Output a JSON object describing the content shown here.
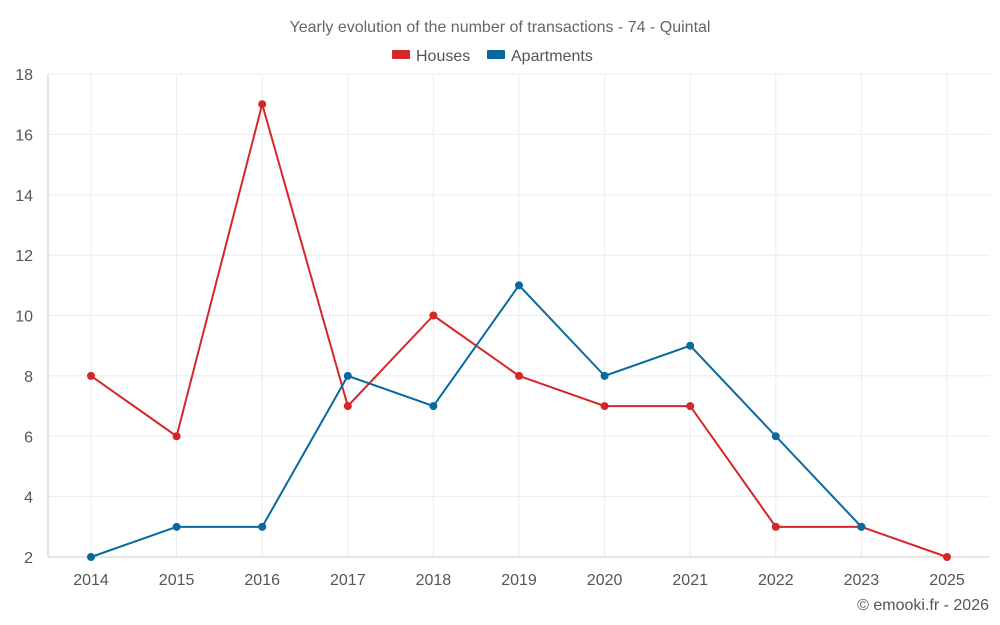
{
  "chart_data": {
    "type": "line",
    "title": "Yearly evolution of the number of transactions - 74 - Quintal",
    "categories": [
      "2014",
      "2015",
      "2016",
      "2017",
      "2018",
      "2019",
      "2020",
      "2021",
      "2022",
      "2023",
      "2025"
    ],
    "series": [
      {
        "name": "Houses",
        "color": "#d62728",
        "values": [
          8,
          6,
          17,
          7,
          10,
          8,
          7,
          7,
          3,
          3,
          2
        ]
      },
      {
        "name": "Apartments",
        "color": "#0868a0",
        "values": [
          2,
          3,
          3,
          8,
          7,
          11,
          8,
          9,
          6,
          3,
          null
        ]
      }
    ],
    "ylim": [
      2,
      18
    ],
    "yticks": [
      2,
      4,
      6,
      8,
      10,
      12,
      14,
      16,
      18
    ],
    "xlabel": "",
    "ylabel": "",
    "grid": true,
    "legend_position": "top-center"
  },
  "credit": "© emooki.fr - 2026"
}
